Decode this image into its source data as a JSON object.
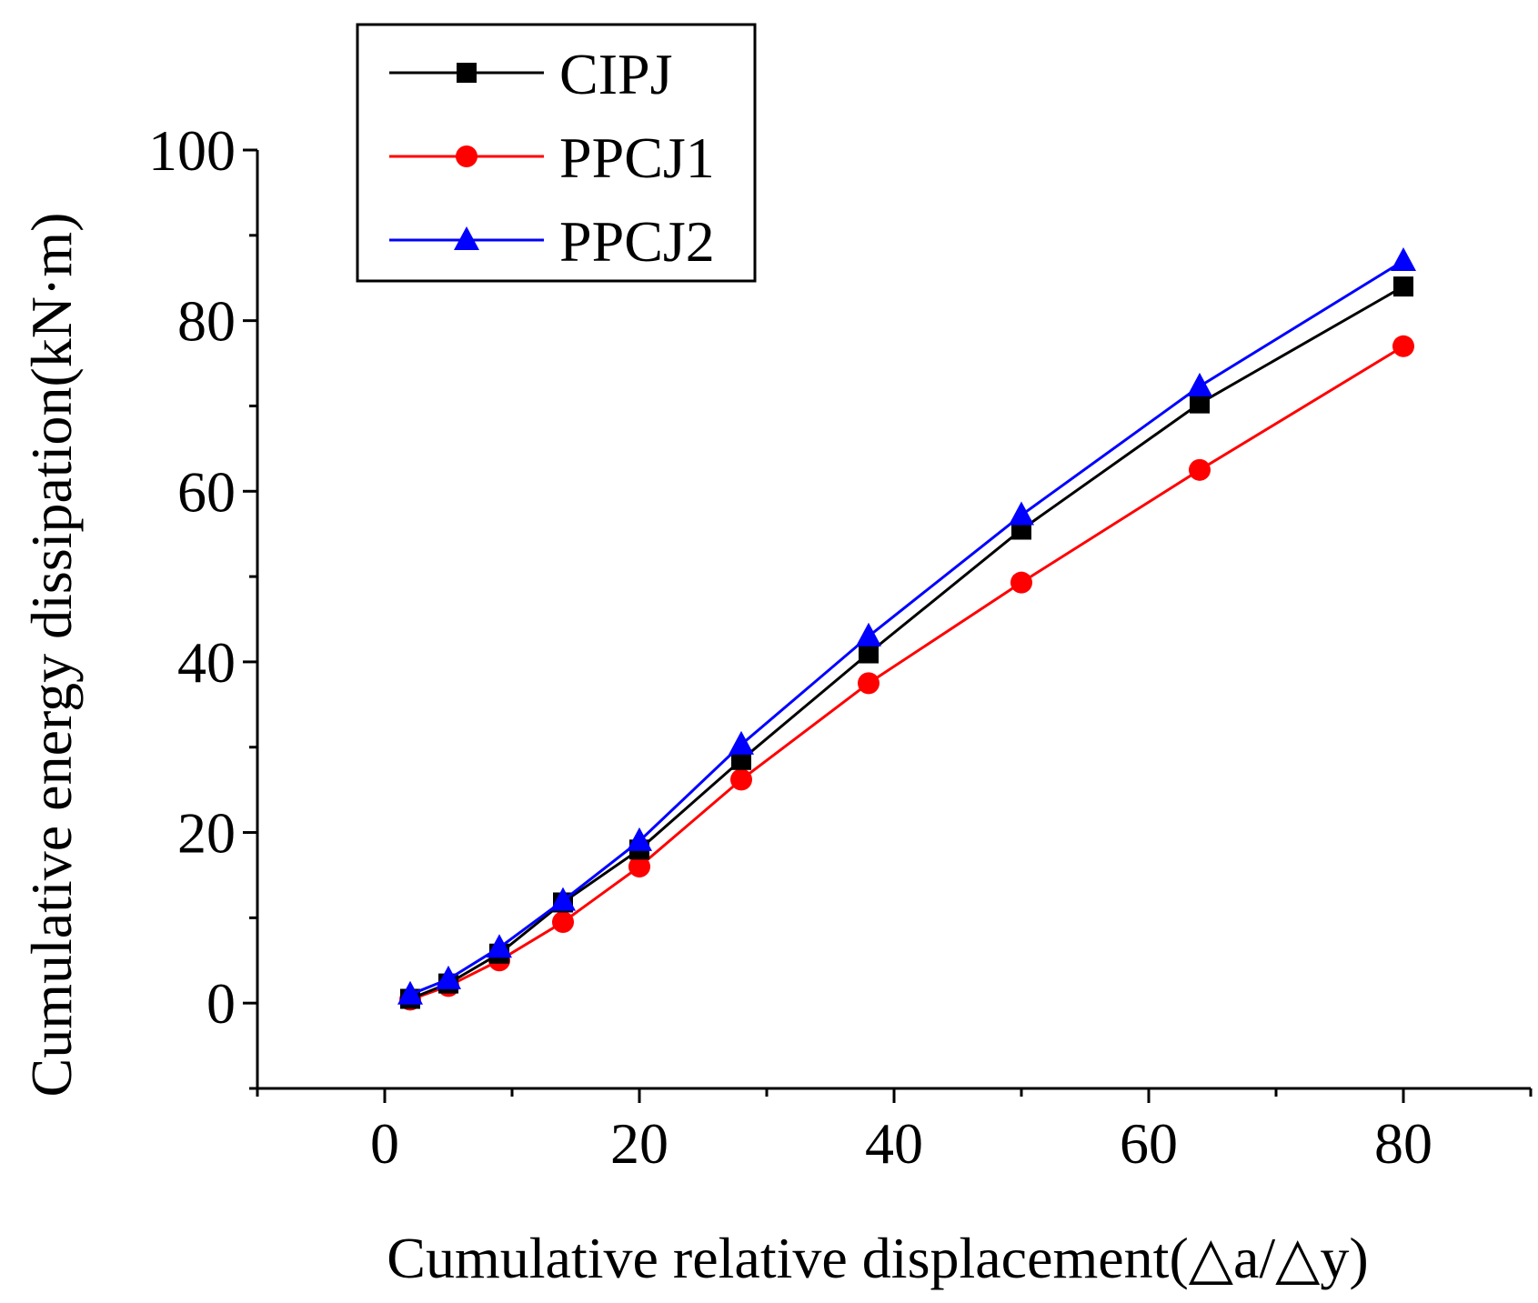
{
  "chart_data": {
    "type": "line",
    "title": "",
    "xlabel": "Cumulative relative displacement(△a/△y)",
    "ylabel": "Cumulative energy dissipation(kN·m)",
    "xlim": [
      -10,
      90
    ],
    "ylim": [
      -10,
      100
    ],
    "xticks": [
      0,
      20,
      40,
      60,
      80
    ],
    "yticks": [
      0,
      20,
      40,
      60,
      80,
      100
    ],
    "legend_position": "top-left",
    "x": [
      2,
      5,
      9,
      14,
      20,
      28,
      38,
      50,
      64,
      80
    ],
    "series": [
      {
        "name": "CIPJ",
        "color": "#000000",
        "marker": "square",
        "values": [
          0.5,
          2.3,
          5.8,
          11.8,
          18.0,
          28.5,
          41.0,
          55.5,
          70.3,
          84.0
        ]
      },
      {
        "name": "PPCJ1",
        "color": "#ff0000",
        "marker": "circle",
        "values": [
          0.4,
          2.0,
          5.0,
          9.5,
          16.0,
          26.2,
          37.5,
          49.3,
          62.5,
          77.0
        ]
      },
      {
        "name": "PPCJ2",
        "color": "#0000ff",
        "marker": "triangle",
        "values": [
          1.0,
          2.8,
          6.5,
          12.0,
          19.0,
          30.3,
          43.0,
          57.2,
          72.3,
          87.0
        ]
      }
    ]
  }
}
